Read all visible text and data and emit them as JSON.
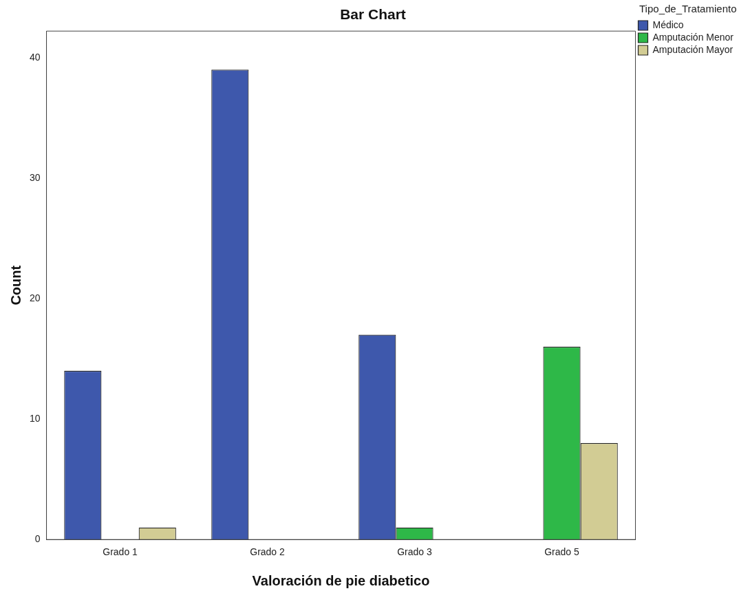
{
  "chart_data": {
    "type": "bar",
    "title": "Bar Chart",
    "xlabel": "Valoración de pie diabetico",
    "ylabel": "Count",
    "legend_title": "Tipo_de_Tratamiento",
    "categories": [
      "Grado 1",
      "Grado 2",
      "Grado 3",
      "Grado 5"
    ],
    "series": [
      {
        "name": "Médico",
        "color": "#3e58ac",
        "values": [
          14,
          39,
          17,
          null
        ]
      },
      {
        "name": "Amputación Menor",
        "color": "#2eb848",
        "values": [
          null,
          null,
          1,
          16
        ]
      },
      {
        "name": "Amputación Mayor",
        "color": "#d2cc94",
        "values": [
          1,
          null,
          null,
          8
        ]
      }
    ],
    "ylim": [
      0,
      42.2
    ],
    "yticks": [
      0,
      10,
      20,
      30,
      40
    ],
    "grid": false,
    "legend": "top right"
  }
}
